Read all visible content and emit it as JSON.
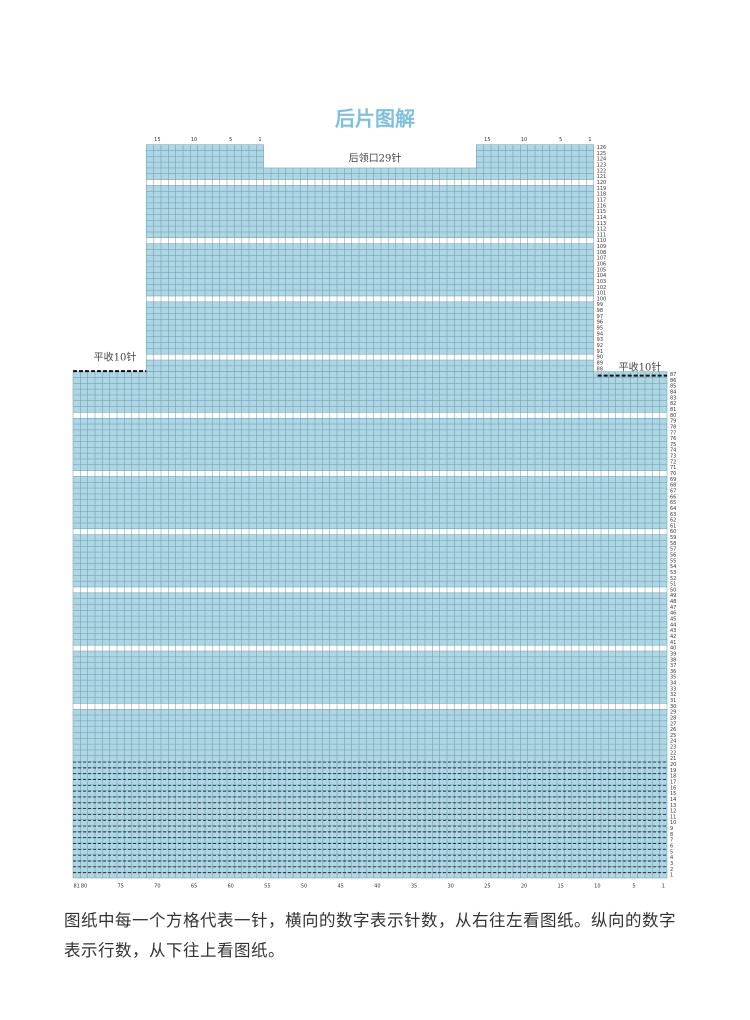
{
  "title": "后片图解",
  "neckline_label": "后领口29针",
  "bind_off_left": "平收10针",
  "bind_off_right": "平收10针",
  "body_row_numbers": [
    1,
    2,
    3,
    4,
    5,
    6,
    7,
    8,
    9,
    10,
    11,
    12,
    13,
    14,
    15,
    16,
    17,
    18,
    19,
    20,
    21,
    22,
    23,
    24,
    25,
    26,
    27,
    28,
    29,
    30,
    31,
    32,
    33,
    34,
    35,
    36,
    37,
    38,
    39,
    40,
    41,
    42,
    43,
    44,
    45,
    46,
    47,
    48,
    49,
    50,
    51,
    52,
    53,
    54,
    55,
    56,
    57,
    58,
    59,
    60,
    61,
    62,
    63,
    64,
    65,
    66,
    67,
    68,
    69,
    70,
    71,
    72,
    73,
    74,
    75,
    76,
    77,
    78,
    79,
    80,
    81,
    82,
    83,
    84,
    85,
    86,
    87
  ],
  "upper_row_numbers": [
    88,
    89,
    90,
    91,
    92,
    93,
    94,
    95,
    96,
    97,
    98,
    99,
    100,
    101,
    102,
    103,
    104,
    105,
    106,
    107,
    108,
    109,
    110,
    111,
    112,
    113,
    114,
    115,
    116,
    117,
    118,
    119,
    120,
    121,
    122,
    123,
    124,
    125,
    126
  ],
  "bottom_column_numbers": [
    81,
    80,
    75,
    70,
    65,
    60,
    55,
    50,
    45,
    40,
    35,
    30,
    25,
    20,
    15,
    10,
    5,
    1
  ],
  "top_left_column_numbers": [
    15,
    10,
    5,
    1
  ],
  "top_right_column_numbers": [
    15,
    10,
    5,
    1
  ],
  "caption": "图纸中每一个方格代表一针，横向的数字表示针数，从右往左看图纸。纵向的数字表示行数，从下往上看图纸。"
}
